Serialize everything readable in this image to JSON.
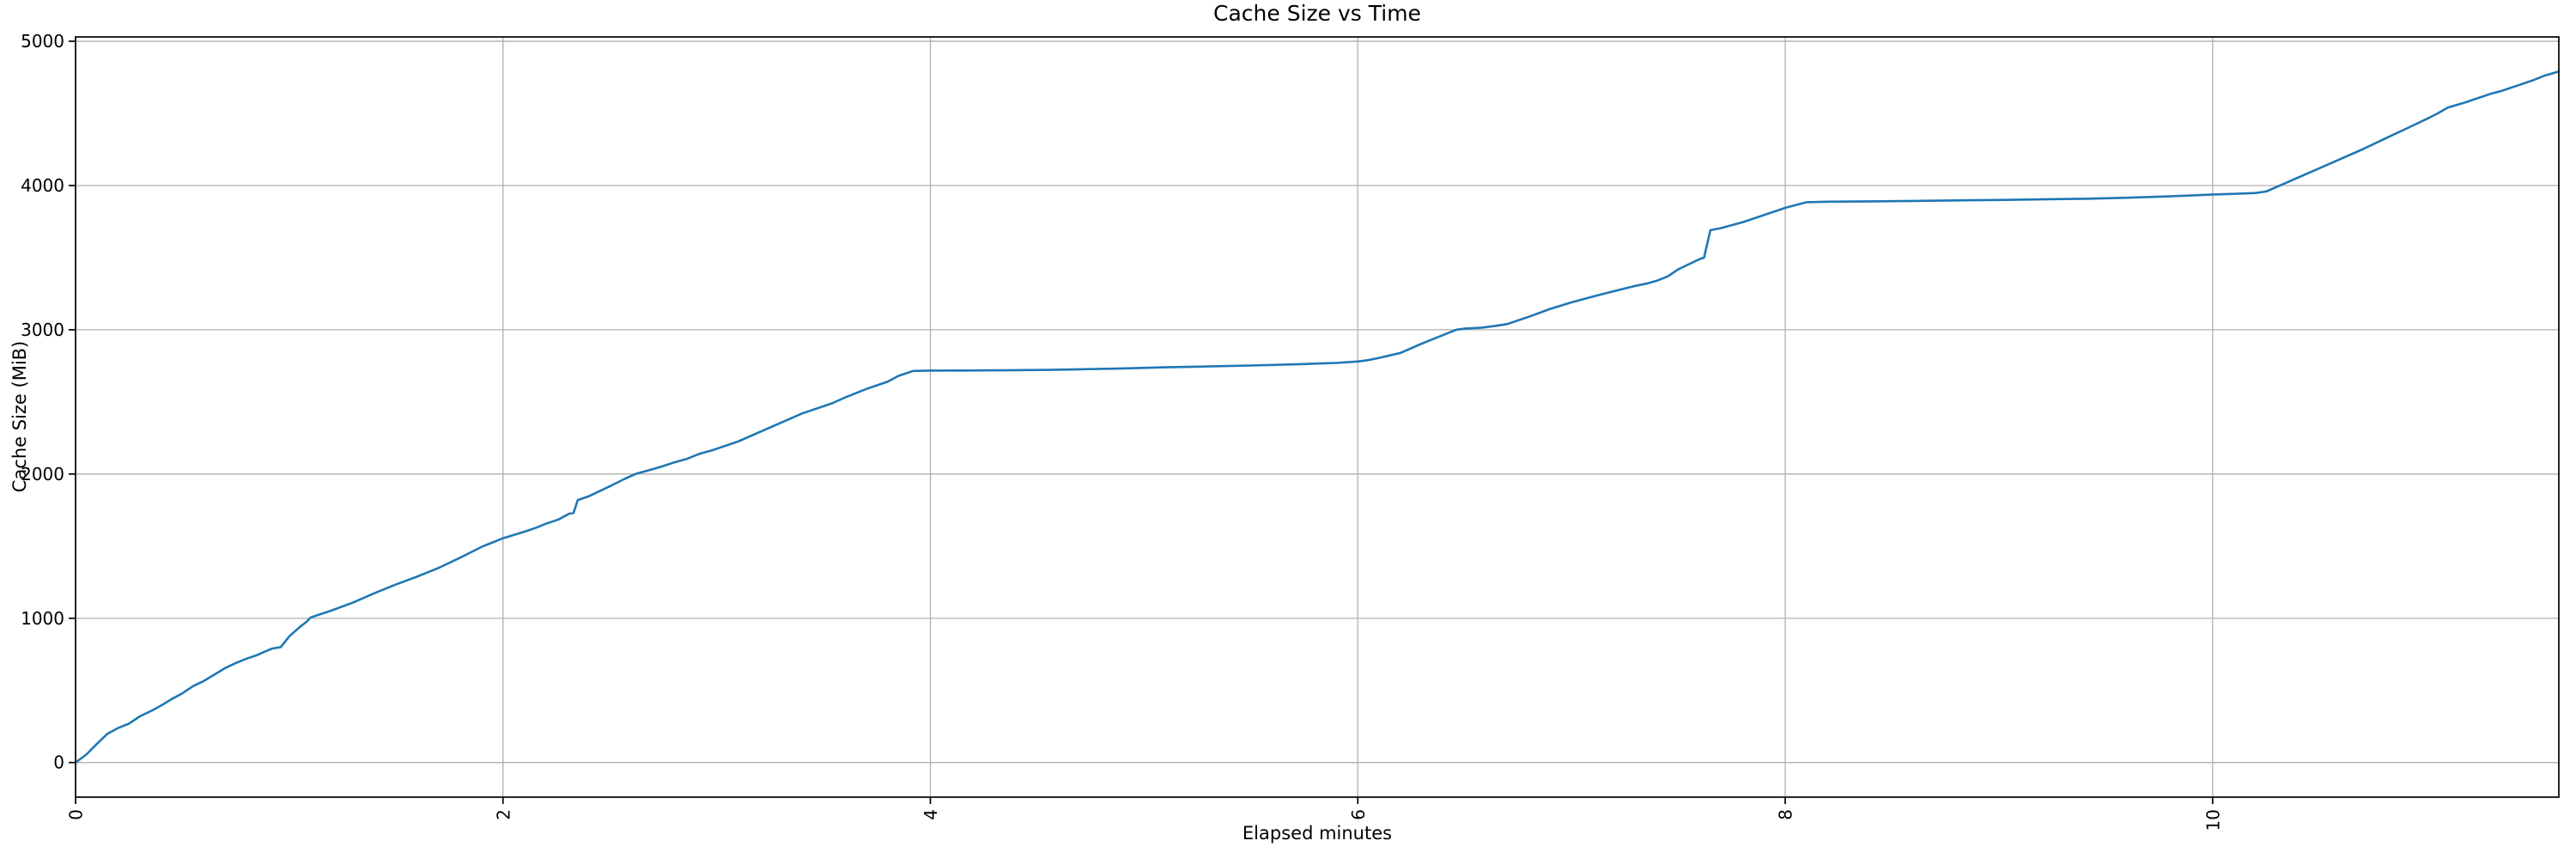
{
  "figure": {
    "background": "#ffffff"
  },
  "chart_data": {
    "type": "line",
    "title": "Cache Size vs Time",
    "xlabel": "Elapsed minutes",
    "ylabel": "Cache Size (MiB)",
    "xlim": [
      0,
      11.62
    ],
    "ylim": [
      -240,
      5030
    ],
    "xticks": [
      0,
      2,
      4,
      6,
      8,
      10
    ],
    "yticks": [
      0,
      1000,
      2000,
      3000,
      4000,
      5000
    ],
    "grid": true,
    "legend": "none",
    "line_color": "#1f77b4",
    "grid_color": "#b0b0b0",
    "spine_color": "#000000",
    "series": [
      {
        "name": "cache_size_mib",
        "points": [
          [
            0.0,
            0
          ],
          [
            0.05,
            55
          ],
          [
            0.1,
            130
          ],
          [
            0.15,
            200
          ],
          [
            0.2,
            240
          ],
          [
            0.25,
            270
          ],
          [
            0.3,
            320
          ],
          [
            0.35,
            355
          ],
          [
            0.4,
            395
          ],
          [
            0.45,
            440
          ],
          [
            0.5,
            480
          ],
          [
            0.55,
            530
          ],
          [
            0.6,
            565
          ],
          [
            0.65,
            610
          ],
          [
            0.7,
            655
          ],
          [
            0.75,
            690
          ],
          [
            0.8,
            720
          ],
          [
            0.85,
            745
          ],
          [
            0.88,
            765
          ],
          [
            0.92,
            790
          ],
          [
            0.96,
            800
          ],
          [
            1.0,
            875
          ],
          [
            1.05,
            940
          ],
          [
            1.08,
            975
          ],
          [
            1.1,
            1005
          ],
          [
            1.15,
            1030
          ],
          [
            1.2,
            1055
          ],
          [
            1.3,
            1110
          ],
          [
            1.4,
            1175
          ],
          [
            1.5,
            1235
          ],
          [
            1.6,
            1290
          ],
          [
            1.7,
            1350
          ],
          [
            1.8,
            1420
          ],
          [
            1.9,
            1495
          ],
          [
            2.0,
            1555
          ],
          [
            2.1,
            1600
          ],
          [
            2.15,
            1625
          ],
          [
            2.2,
            1655
          ],
          [
            2.26,
            1685
          ],
          [
            2.31,
            1725
          ],
          [
            2.33,
            1730
          ],
          [
            2.35,
            1820
          ],
          [
            2.4,
            1845
          ],
          [
            2.5,
            1915
          ],
          [
            2.56,
            1960
          ],
          [
            2.62,
            2000
          ],
          [
            2.68,
            2025
          ],
          [
            2.74,
            2050
          ],
          [
            2.8,
            2080
          ],
          [
            2.86,
            2105
          ],
          [
            2.92,
            2140
          ],
          [
            2.98,
            2165
          ],
          [
            3.05,
            2200
          ],
          [
            3.1,
            2225
          ],
          [
            3.2,
            2290
          ],
          [
            3.3,
            2355
          ],
          [
            3.4,
            2420
          ],
          [
            3.5,
            2470
          ],
          [
            3.54,
            2490
          ],
          [
            3.6,
            2530
          ],
          [
            3.7,
            2590
          ],
          [
            3.8,
            2640
          ],
          [
            3.85,
            2680
          ],
          [
            3.92,
            2715
          ],
          [
            4.0,
            2717
          ],
          [
            4.2,
            2718
          ],
          [
            4.4,
            2720
          ],
          [
            4.56,
            2722
          ],
          [
            4.7,
            2726
          ],
          [
            4.9,
            2732
          ],
          [
            5.1,
            2740
          ],
          [
            5.3,
            2746
          ],
          [
            5.5,
            2752
          ],
          [
            5.7,
            2760
          ],
          [
            5.9,
            2770
          ],
          [
            6.0,
            2780
          ],
          [
            6.05,
            2790
          ],
          [
            6.1,
            2805
          ],
          [
            6.2,
            2840
          ],
          [
            6.3,
            2905
          ],
          [
            6.46,
            3000
          ],
          [
            6.5,
            3008
          ],
          [
            6.58,
            3015
          ],
          [
            6.65,
            3028
          ],
          [
            6.7,
            3040
          ],
          [
            6.8,
            3090
          ],
          [
            6.9,
            3145
          ],
          [
            7.0,
            3190
          ],
          [
            7.1,
            3230
          ],
          [
            7.2,
            3268
          ],
          [
            7.3,
            3305
          ],
          [
            7.35,
            3320
          ],
          [
            7.4,
            3340
          ],
          [
            7.45,
            3370
          ],
          [
            7.5,
            3420
          ],
          [
            7.55,
            3455
          ],
          [
            7.6,
            3490
          ],
          [
            7.62,
            3500
          ],
          [
            7.65,
            3690
          ],
          [
            7.7,
            3705
          ],
          [
            7.8,
            3745
          ],
          [
            7.9,
            3795
          ],
          [
            8.0,
            3845
          ],
          [
            8.05,
            3865
          ],
          [
            8.1,
            3884
          ],
          [
            8.2,
            3888
          ],
          [
            8.4,
            3890
          ],
          [
            8.6,
            3893
          ],
          [
            8.8,
            3897
          ],
          [
            9.0,
            3900
          ],
          [
            9.2,
            3904
          ],
          [
            9.4,
            3908
          ],
          [
            9.6,
            3915
          ],
          [
            9.8,
            3925
          ],
          [
            10.0,
            3938
          ],
          [
            10.1,
            3942
          ],
          [
            10.2,
            3948
          ],
          [
            10.25,
            3958
          ],
          [
            10.3,
            3990
          ],
          [
            10.4,
            4055
          ],
          [
            10.5,
            4120
          ],
          [
            10.6,
            4185
          ],
          [
            10.7,
            4250
          ],
          [
            10.8,
            4320
          ],
          [
            10.9,
            4390
          ],
          [
            11.0,
            4460
          ],
          [
            11.05,
            4497
          ],
          [
            11.1,
            4540
          ],
          [
            11.18,
            4575
          ],
          [
            11.25,
            4610
          ],
          [
            11.3,
            4635
          ],
          [
            11.35,
            4655
          ],
          [
            11.4,
            4680
          ],
          [
            11.45,
            4705
          ],
          [
            11.5,
            4730
          ],
          [
            11.55,
            4760
          ],
          [
            11.62,
            4790
          ]
        ]
      }
    ]
  }
}
